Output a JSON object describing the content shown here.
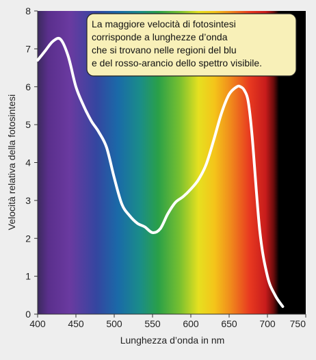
{
  "chart_data": {
    "type": "line",
    "xlabel": "Lunghezza d’onda in nm",
    "ylabel": "Velocità relativa della fotosintesi",
    "xlim": [
      400,
      750
    ],
    "ylim": [
      0,
      8
    ],
    "x_ticks": [
      "400",
      "450",
      "500",
      "550",
      "600",
      "650",
      "700",
      "750"
    ],
    "y_ticks": [
      "0",
      "1",
      "2",
      "3",
      "4",
      "5",
      "6",
      "7",
      "8"
    ],
    "grid": false,
    "background": "visible spectrum gradient (violet → blue → green → yellow → orange → red → black)",
    "annotation": {
      "lines": [
        "La maggiore velocità di fotosintesi",
        "corrisponde a lunghezze d’onda",
        "che si trovano nelle regioni del blu",
        "e del rosso-arancio dello spettro visibile."
      ]
    },
    "series": [
      {
        "x": [
          400,
          410,
          420,
          430,
          440,
          450,
          460,
          470,
          480,
          490,
          500,
          510,
          520,
          530,
          540,
          550,
          560,
          570,
          580,
          590,
          600,
          610,
          620,
          630,
          640,
          650,
          660,
          665,
          670,
          675,
          680,
          690,
          700,
          710,
          720
        ],
        "values": [
          6.7,
          6.95,
          7.2,
          7.25,
          6.8,
          6.0,
          5.5,
          5.1,
          4.8,
          4.4,
          3.6,
          2.9,
          2.6,
          2.4,
          2.3,
          2.15,
          2.25,
          2.65,
          2.95,
          3.1,
          3.3,
          3.55,
          3.95,
          4.6,
          5.3,
          5.8,
          6.0,
          6.0,
          5.9,
          5.6,
          4.7,
          2.2,
          1.0,
          0.5,
          0.2
        ],
        "color": "#ffffff"
      }
    ],
    "colors": {
      "line": "#ffffff",
      "note_fill": "#f8f0b8",
      "note_stroke": "#222222",
      "page": "#eeeeee",
      "axis": "#333333"
    }
  }
}
